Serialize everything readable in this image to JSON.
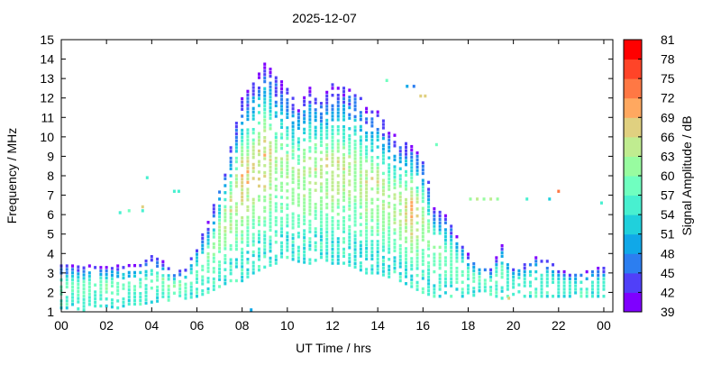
{
  "chart_data": {
    "type": "heatmap",
    "title": "2025-12-07",
    "xlabel": "UT Time / hrs",
    "ylabel": "Frequency / MHz",
    "xlim": [
      0,
      24.4
    ],
    "ylim": [
      1,
      15
    ],
    "xticks": [
      "00",
      "02",
      "04",
      "06",
      "08",
      "10",
      "12",
      "14",
      "16",
      "18",
      "20",
      "22",
      "00"
    ],
    "xtick_values": [
      0,
      2,
      4,
      6,
      8,
      10,
      12,
      14,
      16,
      18,
      20,
      22,
      24
    ],
    "yticks": [
      1,
      2,
      3,
      4,
      5,
      6,
      7,
      8,
      9,
      10,
      11,
      12,
      13,
      14,
      15
    ],
    "colorbar": {
      "label": "Signal Amplitude / dB",
      "ticks": [
        39,
        42,
        45,
        48,
        51,
        54,
        57,
        60,
        63,
        66,
        69,
        72,
        75,
        78,
        81
      ],
      "colors": [
        "#7f00ff",
        "#5040f8",
        "#2c7ef0",
        "#10a8e8",
        "#20d0dc",
        "#48f0d0",
        "#70ffc0",
        "#98fca0",
        "#c0ec90",
        "#e0d080",
        "#ffa860",
        "#ff7844",
        "#ff4428",
        "#ff0000"
      ]
    },
    "columns_note_fields": [
      "time_hrs",
      "fmin_MHz",
      "fmax_MHz",
      "peak_dB"
    ],
    "columns": [
      [
        0.0,
        1.2,
        3.5,
        58
      ],
      [
        0.5,
        1.2,
        3.5,
        58
      ],
      [
        1.0,
        1.1,
        3.4,
        60
      ],
      [
        1.5,
        1.3,
        3.4,
        58
      ],
      [
        2.0,
        1.3,
        3.3,
        62
      ],
      [
        2.5,
        1.2,
        3.4,
        60
      ],
      [
        3.0,
        1.4,
        3.4,
        58
      ],
      [
        3.5,
        1.4,
        3.5,
        58
      ],
      [
        4.0,
        1.5,
        3.9,
        58
      ],
      [
        4.5,
        1.6,
        3.6,
        60
      ],
      [
        5.0,
        1.6,
        3.0,
        62
      ],
      [
        5.5,
        1.7,
        3.2,
        60
      ],
      [
        6.0,
        1.8,
        4.5,
        58
      ],
      [
        6.5,
        2.0,
        5.6,
        60
      ],
      [
        7.0,
        2.3,
        7.5,
        64
      ],
      [
        7.5,
        2.6,
        9.5,
        66
      ],
      [
        8.0,
        2.6,
        12.0,
        70
      ],
      [
        8.5,
        3.0,
        12.8,
        68
      ],
      [
        9.0,
        3.3,
        13.8,
        70
      ],
      [
        9.5,
        3.5,
        13.2,
        64
      ],
      [
        10.0,
        3.8,
        12.5,
        64
      ],
      [
        10.5,
        3.6,
        11.8,
        64
      ],
      [
        11.0,
        3.5,
        12.5,
        66
      ],
      [
        11.5,
        3.8,
        12.0,
        66
      ],
      [
        12.0,
        3.5,
        12.7,
        66
      ],
      [
        12.5,
        3.5,
        12.5,
        66
      ],
      [
        13.0,
        3.3,
        12.5,
        64
      ],
      [
        13.5,
        3.0,
        11.5,
        66
      ],
      [
        14.0,
        3.0,
        11.3,
        66
      ],
      [
        14.5,
        2.8,
        10.5,
        64
      ],
      [
        15.0,
        2.6,
        9.8,
        66
      ],
      [
        15.5,
        2.3,
        9.5,
        72
      ],
      [
        16.0,
        2.0,
        9.0,
        64
      ],
      [
        16.5,
        1.8,
        6.5,
        62
      ],
      [
        17.0,
        1.8,
        6.0,
        60
      ],
      [
        17.5,
        1.8,
        5.0,
        60
      ],
      [
        18.0,
        1.8,
        4.0,
        58
      ],
      [
        18.5,
        1.9,
        3.5,
        58
      ],
      [
        19.0,
        1.9,
        3.2,
        58
      ],
      [
        19.5,
        1.7,
        4.5,
        58
      ],
      [
        20.0,
        1.9,
        3.3,
        56
      ],
      [
        20.5,
        1.8,
        3.5,
        56
      ],
      [
        21.0,
        1.8,
        3.9,
        56
      ],
      [
        21.5,
        1.8,
        3.7,
        56
      ],
      [
        22.0,
        1.8,
        3.2,
        56
      ],
      [
        22.5,
        1.8,
        3.0,
        56
      ],
      [
        23.0,
        1.8,
        3.0,
        56
      ],
      [
        23.5,
        1.8,
        3.2,
        56
      ],
      [
        24.0,
        1.8,
        3.3,
        56
      ]
    ],
    "isolated_points": [
      [
        2.6,
        6.1,
        54
      ],
      [
        3.0,
        6.2,
        57
      ],
      [
        3.6,
        6.2,
        54
      ],
      [
        3.6,
        6.4,
        66
      ],
      [
        3.8,
        7.9,
        54
      ],
      [
        5.0,
        7.2,
        54
      ],
      [
        5.2,
        7.2,
        54
      ],
      [
        8.4,
        1.1,
        48
      ],
      [
        14.4,
        12.9,
        57
      ],
      [
        15.3,
        12.6,
        48
      ],
      [
        15.6,
        12.6,
        45
      ],
      [
        15.9,
        12.1,
        66
      ],
      [
        16.1,
        12.1,
        66
      ],
      [
        16.6,
        9.6,
        57
      ],
      [
        18.1,
        6.8,
        60
      ],
      [
        18.4,
        6.8,
        63
      ],
      [
        18.7,
        6.8,
        60
      ],
      [
        19.0,
        6.8,
        63
      ],
      [
        19.3,
        6.8,
        60
      ],
      [
        20.6,
        6.8,
        54
      ],
      [
        21.6,
        6.8,
        51
      ],
      [
        22.0,
        7.2,
        72
      ],
      [
        23.9,
        6.6,
        54
      ],
      [
        19.8,
        1.7,
        66
      ]
    ]
  }
}
